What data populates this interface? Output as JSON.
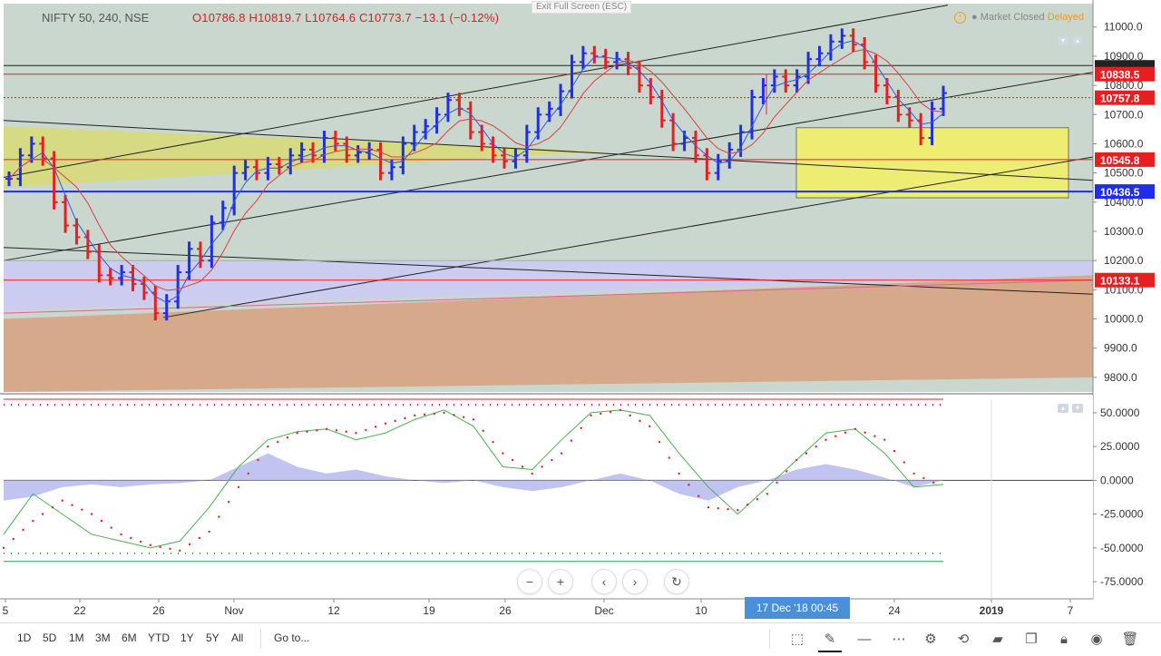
{
  "header": {
    "symbol": "NIFTY 50, 240, NSE",
    "ohlc": "O10786.8  H10819.7  L10764.6  C10773.7  −13.1 (−0.12%)",
    "exit_fullscreen": "Exit Full Screen (ESC)",
    "market_status": "● Market Closed",
    "delayed": "Delayed"
  },
  "toolbar": {
    "ranges": [
      "1D",
      "5D",
      "1M",
      "3M",
      "6M",
      "YTD",
      "1Y",
      "5Y",
      "All"
    ],
    "goto": "Go to...",
    "crosshair_time": "17 Dec '18    00:45"
  },
  "chart_data": [
    {
      "type": "bar",
      "title": "NIFTY 50, 240, NSE",
      "ylim": [
        9750,
        11080
      ],
      "y_ticks": [
        11000.0,
        10900.0,
        10800.0,
        10700.0,
        10600.0,
        10500.0,
        10400.0,
        10300.0,
        10200.0,
        10100.0,
        10000.0,
        9900.0,
        9800.0
      ],
      "x_ticks": [
        "5",
        "22",
        "26",
        "Nov",
        "12",
        "19",
        "26",
        "Dec",
        "10",
        "24",
        "2019",
        "7"
      ],
      "price_labels": [
        {
          "value": 10838.5,
          "text": "10838.5",
          "color": "#e62020"
        },
        {
          "value": 10757.8,
          "text": "10757.8",
          "color": "#e62020"
        },
        {
          "value": 10545.8,
          "text": "10545.8",
          "color": "#e62020"
        },
        {
          "value": 10436.5,
          "text": "10436.5",
          "color": "#1f2ee8"
        },
        {
          "value": 10133.1,
          "text": "10133.1",
          "color": "#e62020"
        }
      ],
      "horizontal_lines": [
        {
          "value": 10868,
          "color": "#222222"
        },
        {
          "value": 10838.5,
          "color": "#e62020"
        },
        {
          "value": 10757.8,
          "color": "#e62020",
          "dashed": true
        },
        {
          "value": 10545.8,
          "color": "#e62020"
        },
        {
          "value": 10436.5,
          "color": "#1f2ee8"
        },
        {
          "value": 10200,
          "color": "#9acd32"
        },
        {
          "value": 10133.1,
          "color": "#e62020"
        }
      ],
      "close": [
        10480,
        10560,
        10600,
        10550,
        10400,
        10320,
        10280,
        10230,
        10150,
        10140,
        10160,
        10120,
        10090,
        10020,
        10060,
        10160,
        10240,
        10200,
        10330,
        10380,
        10500,
        10520,
        10500,
        10530,
        10520,
        10560,
        10580,
        10560,
        10620,
        10600,
        10560,
        10570,
        10580,
        10500,
        10520,
        10600,
        10640,
        10660,
        10700,
        10750,
        10720,
        10640,
        10600,
        10560,
        10540,
        10560,
        10640,
        10700,
        10720,
        10780,
        10880,
        10910,
        10900,
        10880,
        10890,
        10860,
        10800,
        10760,
        10680,
        10600,
        10620,
        10560,
        10500,
        10540,
        10580,
        10640,
        10760,
        10800,
        10830,
        10800,
        10830,
        10890,
        10910,
        10950,
        10970,
        10940,
        10880,
        10800,
        10760,
        10700,
        10680,
        10620,
        10720,
        10773.7
      ]
    },
    {
      "type": "line",
      "title": "",
      "ylim": [
        -85,
        60
      ],
      "y_ticks": [
        50.0,
        25.0,
        0.0,
        -25.0,
        -50.0,
        -75.0
      ],
      "y_tick_labels": [
        "50.0000",
        "25.0000",
        "0.0000",
        "-25.0000",
        "-50.0000",
        "-75.0000"
      ],
      "series": [
        {
          "values": [
            -40,
            -10,
            -25,
            -40,
            -45,
            -50,
            -45,
            -20,
            10,
            30,
            36,
            38,
            30,
            35,
            45,
            52,
            40,
            10,
            8,
            30,
            50,
            52,
            48,
            20,
            -5,
            -25,
            -5,
            15,
            35,
            38,
            20,
            -5,
            -3
          ]
        },
        {
          "values": [
            -50,
            -30,
            -15,
            -25,
            -40,
            -48,
            -52,
            -38,
            -5,
            25,
            35,
            38,
            35,
            42,
            48,
            50,
            45,
            20,
            5,
            20,
            48,
            52,
            40,
            5,
            -20,
            -22,
            -10,
            15,
            30,
            38,
            30,
            5,
            -5
          ]
        },
        {
          "values": [
            -15,
            -12,
            -5,
            -3,
            -5,
            -3,
            -2,
            0,
            10,
            20,
            10,
            5,
            8,
            3,
            0,
            -2,
            0,
            -5,
            -8,
            -5,
            0,
            5,
            0,
            -10,
            -15,
            -5,
            0,
            8,
            12,
            8,
            2,
            -5,
            0
          ]
        }
      ]
    }
  ]
}
